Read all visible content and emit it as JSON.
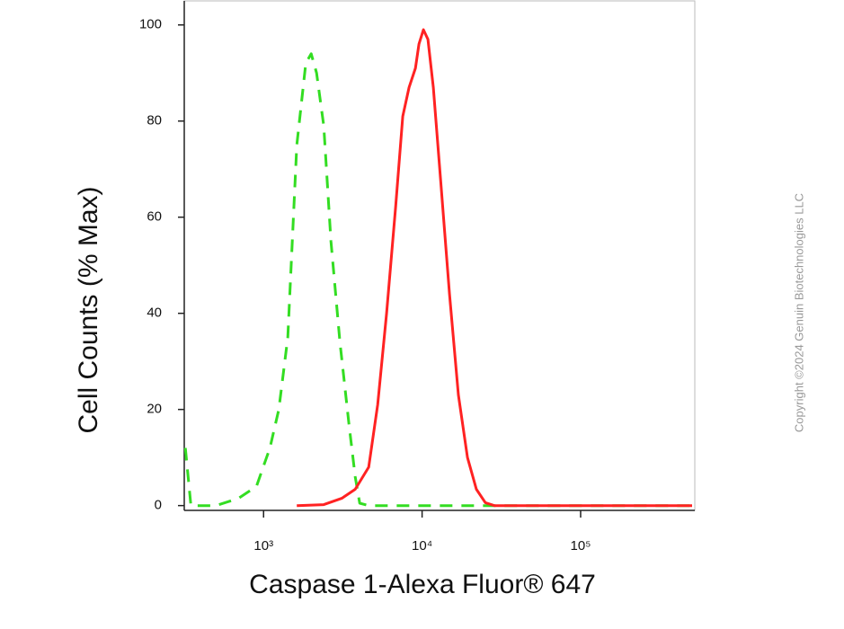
{
  "chart_data": {
    "type": "line",
    "x_label": "Caspase 1-Alexa Fluor® 647",
    "y_label": "Cell Counts (% Max)",
    "watermark": "Copyright ©2024 Genuin Biotechnologies LLC",
    "xscale": "log",
    "xlim": [
      316,
      525000
    ],
    "xticks": [
      {
        "value": 1000,
        "label": "10³"
      },
      {
        "value": 10000,
        "label": "10⁴"
      },
      {
        "value": 100000,
        "label": "10⁵"
      }
    ],
    "ylim": [
      -1,
      105
    ],
    "yticks": [
      0,
      20,
      40,
      60,
      80,
      100
    ],
    "series": [
      {
        "color": "#33dd22",
        "dashed": true,
        "x": [
          321,
          348,
          501,
          694,
          901,
          1096,
          1248,
          1422,
          1621,
          1846,
          1996,
          2159,
          2397,
          2660,
          3033,
          3453,
          3785,
          4038,
          4603,
          504700
        ],
        "values": [
          12,
          0,
          0,
          1.5,
          4,
          12,
          20,
          35,
          75,
          92,
          94,
          90,
          79,
          55,
          34,
          17,
          6,
          0.5,
          0,
          0
        ]
      },
      {
        "color": "#ff2222",
        "dashed": false,
        "x": [
          1621,
          2397,
          3112,
          3785,
          4603,
          5243,
          5970,
          6800,
          7551,
          8276,
          9074,
          9550,
          10190,
          10880,
          11770,
          13060,
          14880,
          16950,
          19320,
          22010,
          25060,
          28580,
          504700
        ],
        "values": [
          0,
          0.2,
          1.5,
          3.4,
          8,
          21,
          40,
          62,
          81,
          87,
          91,
          96,
          99,
          97,
          87,
          68,
          44,
          23,
          10,
          3.4,
          0.6,
          0,
          0
        ]
      }
    ]
  }
}
